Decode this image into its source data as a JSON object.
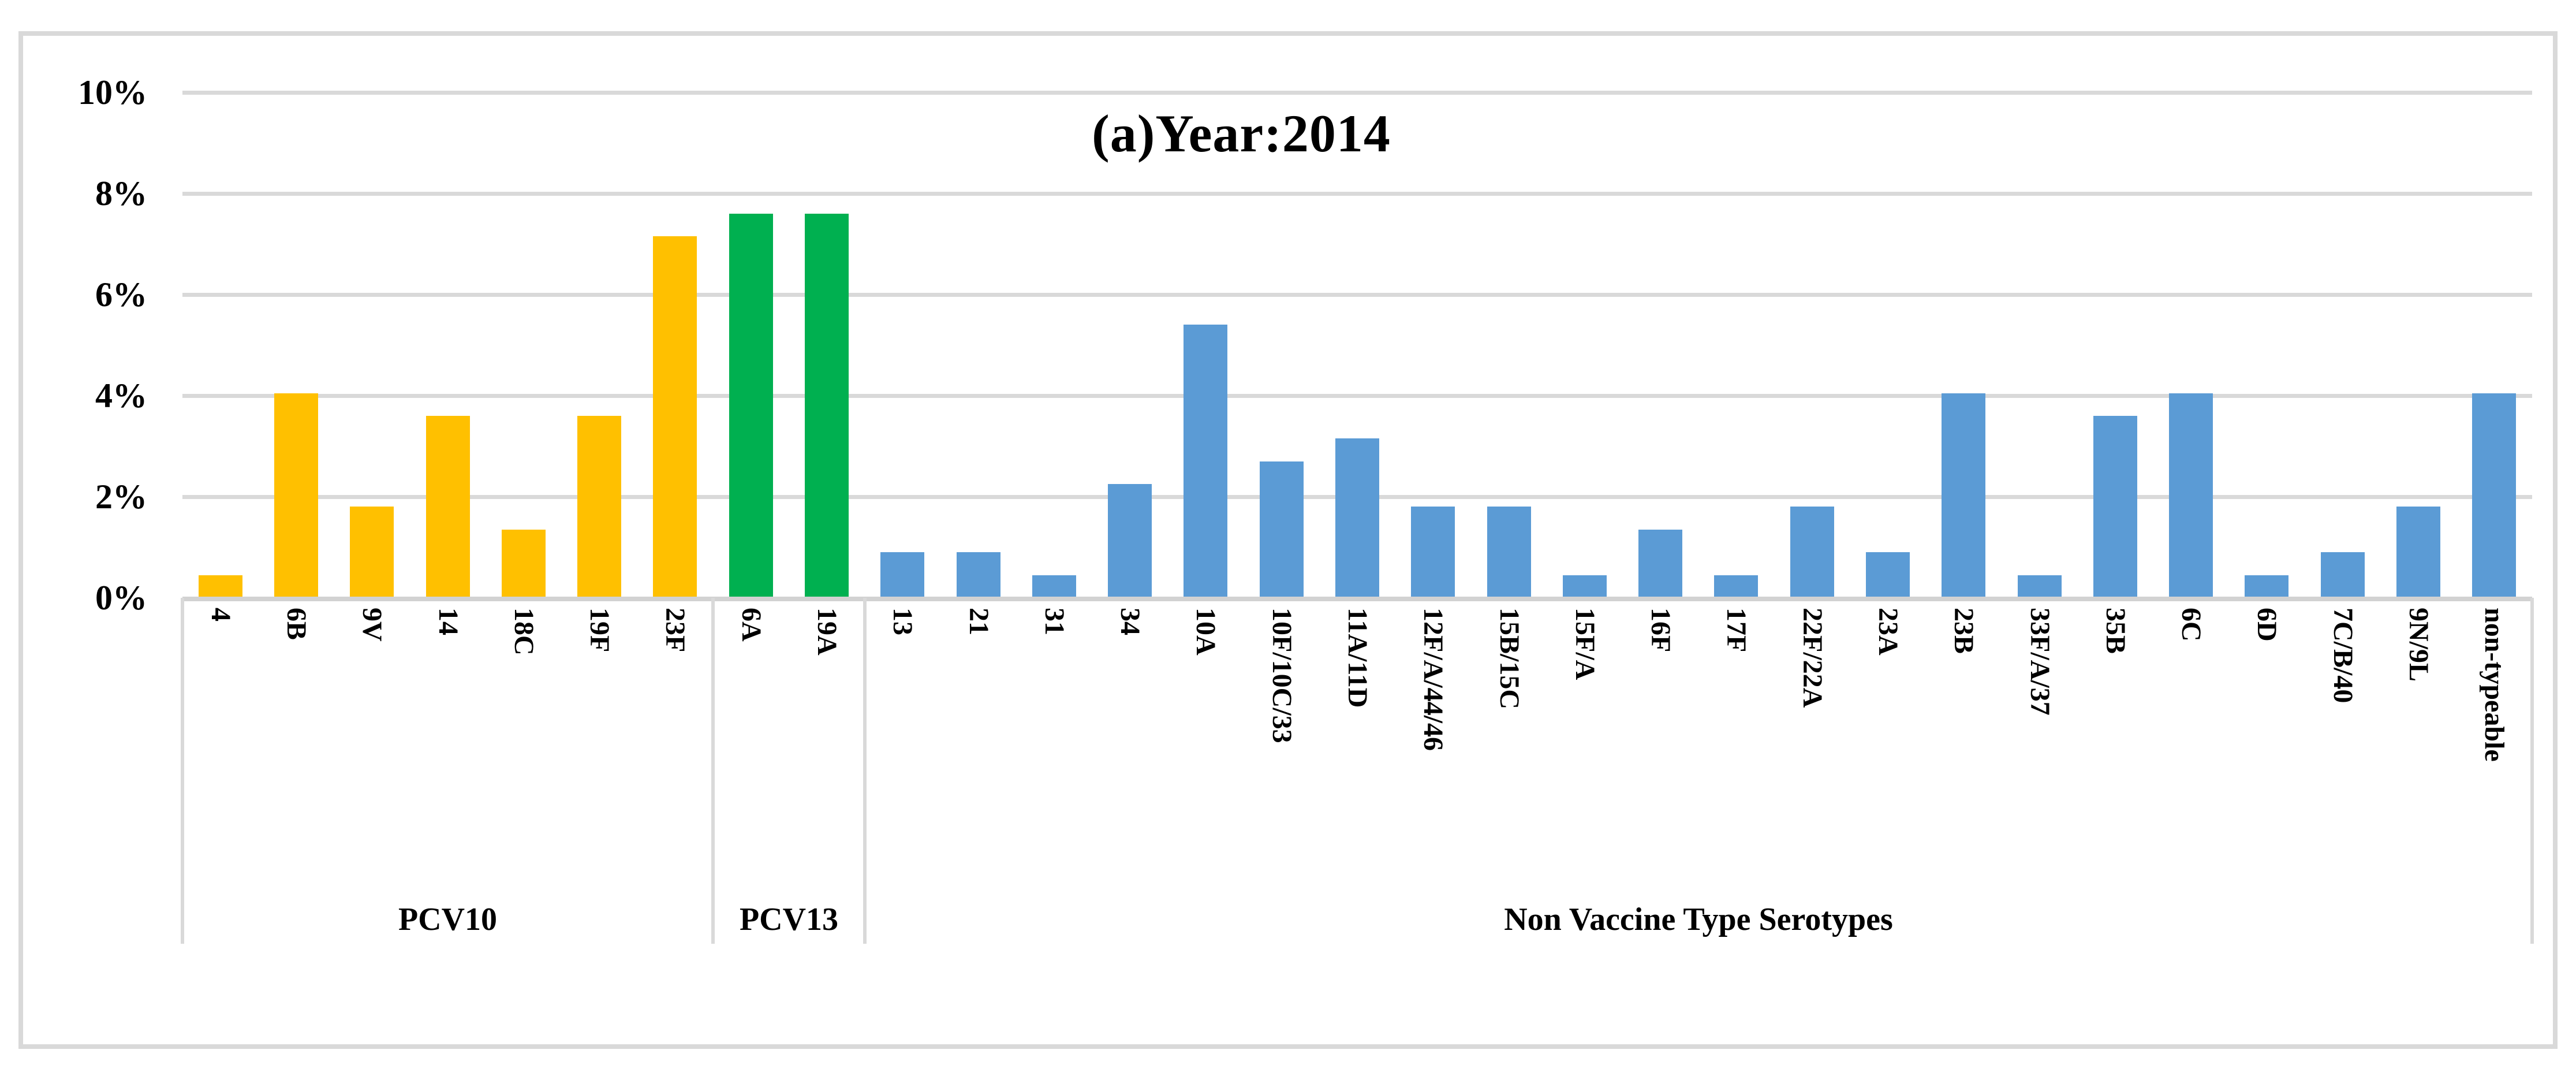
{
  "chart_data": {
    "type": "bar",
    "title": "(a)Year:2014",
    "xlabel": "",
    "ylabel": "",
    "ylim": [
      0,
      10
    ],
    "yticks": [
      "0%",
      "2%",
      "4%",
      "6%",
      "8%",
      "10%"
    ],
    "grid": true,
    "legend": "none",
    "categories": [
      "4",
      "6B",
      "9V",
      "14",
      "18C",
      "19F",
      "23F",
      "6A",
      "19A",
      "13",
      "21",
      "31",
      "34",
      "10A",
      "10F/10C/33",
      "11A/11D",
      "12F/A/44/46",
      "15B/15C",
      "15F/A",
      "16F",
      "17F",
      "22F/22A",
      "23A",
      "23B",
      "33F/A/37",
      "35B",
      "6C",
      "6D",
      "7C/B/40",
      "9N/9L",
      "non-typeable"
    ],
    "values": [
      0.45,
      4.05,
      1.8,
      3.6,
      1.35,
      3.6,
      7.15,
      7.6,
      7.6,
      0.9,
      0.9,
      0.45,
      2.25,
      5.4,
      2.7,
      3.15,
      1.8,
      1.8,
      0.45,
      1.35,
      0.45,
      1.8,
      0.9,
      4.05,
      0.45,
      3.6,
      4.05,
      0.45,
      0.9,
      1.8,
      4.05
    ],
    "groups": [
      {
        "label": "PCV10",
        "start": 0,
        "count": 7,
        "color": "#FFC000"
      },
      {
        "label": "PCV13",
        "start": 7,
        "count": 2,
        "color": "#00B050"
      },
      {
        "label": "Non Vaccine Type Serotypes",
        "start": 9,
        "count": 22,
        "color": "#5B9BD5"
      }
    ],
    "colors": {
      "pcv10_bar": "#FFC000",
      "pcv13_bar": "#00B050",
      "nvt_bar": "#5B9BD5",
      "gridline": "#D9D9D9",
      "text": "#000000"
    }
  }
}
